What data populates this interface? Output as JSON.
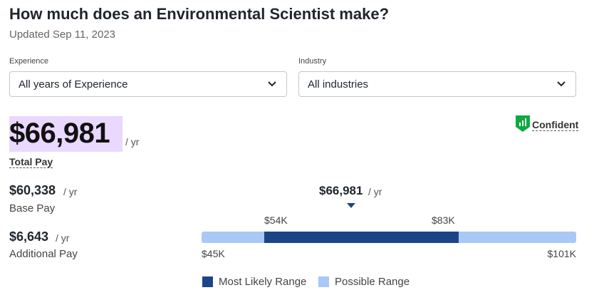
{
  "header": {
    "title": "How much does an Environmental Scientist make?",
    "updated": "Updated Sep 11, 2023"
  },
  "filters": [
    {
      "label": "Experience",
      "value": "All years of Experience"
    },
    {
      "label": "Industry",
      "value": "All industries"
    }
  ],
  "total_pay": {
    "amount": "$66,981",
    "unit": "/ yr",
    "label": "Total Pay"
  },
  "confidence": "Confident",
  "base_pay": {
    "amount": "$60,338",
    "unit": "/ yr",
    "label": "Base Pay"
  },
  "additional_pay": {
    "amount": "$6,643",
    "unit": "/ yr",
    "label": "Additional Pay"
  },
  "range": {
    "median": "$66,981",
    "median_unit": "/ yr",
    "likely_low": "$54K",
    "likely_high": "$83K",
    "min": "$45K",
    "max": "$101K"
  },
  "legend": [
    "Most Likely Range",
    "Possible Range"
  ]
}
